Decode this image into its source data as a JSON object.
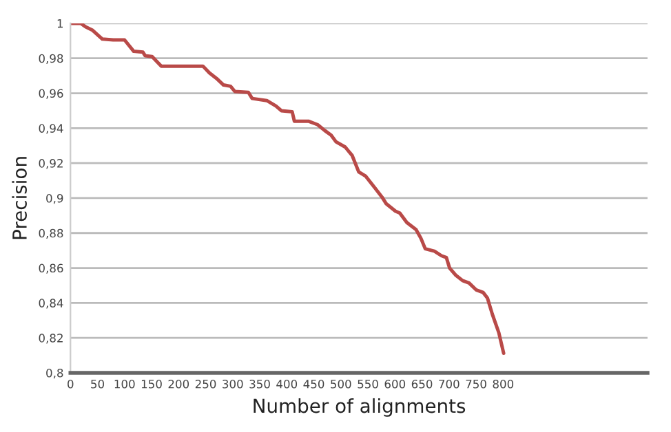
{
  "chart_data": {
    "type": "line",
    "xlabel": "Number of alignments",
    "ylabel": "Precision",
    "x": [
      0,
      19,
      28,
      41,
      59,
      79,
      100,
      117,
      134,
      138,
      151,
      168,
      245,
      257,
      270,
      283,
      296,
      304,
      329,
      336,
      363,
      380,
      390,
      410,
      414,
      440,
      457,
      470,
      482,
      491,
      508,
      521,
      533,
      546,
      563,
      576,
      584,
      601,
      609,
      622,
      639,
      648,
      656,
      673,
      686,
      695,
      701,
      712,
      725,
      737,
      750,
      763,
      771,
      780,
      792,
      801
    ],
    "series": [
      {
        "color": "#b94a48",
        "values": [
          1,
          1,
          0.998,
          0.996,
          0.991,
          0.9905,
          0.9905,
          0.984,
          0.9835,
          0.9815,
          0.981,
          0.9755,
          0.9755,
          0.9716,
          0.9685,
          0.9647,
          0.964,
          0.961,
          0.9605,
          0.957,
          0.9558,
          0.9527,
          0.95,
          0.9494,
          0.944,
          0.944,
          0.942,
          0.9387,
          0.936,
          0.9322,
          0.9292,
          0.9243,
          0.915,
          0.9125,
          0.9058,
          0.9006,
          0.8967,
          0.8925,
          0.8914,
          0.886,
          0.882,
          0.877,
          0.871,
          0.8696,
          0.867,
          0.866,
          0.86,
          0.856,
          0.8528,
          0.8514,
          0.8475,
          0.846,
          0.8428,
          0.8336,
          0.823,
          0.8112
        ]
      }
    ],
    "xlim": [
      0,
      1067
    ],
    "xticks": [
      0,
      50,
      100,
      150,
      200,
      250,
      300,
      350,
      400,
      450,
      500,
      550,
      600,
      650,
      700,
      750,
      800
    ],
    "ylim": [
      0.8,
      1
    ],
    "yticks": [
      {
        "value": 0.8,
        "label": "0,8"
      },
      {
        "value": 0.82,
        "label": "0,82"
      },
      {
        "value": 0.84,
        "label": "0,84"
      },
      {
        "value": 0.86,
        "label": "0,86"
      },
      {
        "value": 0.88,
        "label": "0,88"
      },
      {
        "value": 0.9,
        "label": "0,9"
      },
      {
        "value": 0.92,
        "label": "0,92"
      },
      {
        "value": 0.94,
        "label": "0,94"
      },
      {
        "value": 0.96,
        "label": "0,96"
      },
      {
        "value": 0.98,
        "label": "0,98"
      },
      {
        "value": 1,
        "label": "1"
      }
    ],
    "grid": "y",
    "legend": false,
    "marker": "none",
    "line_style": "solid"
  }
}
